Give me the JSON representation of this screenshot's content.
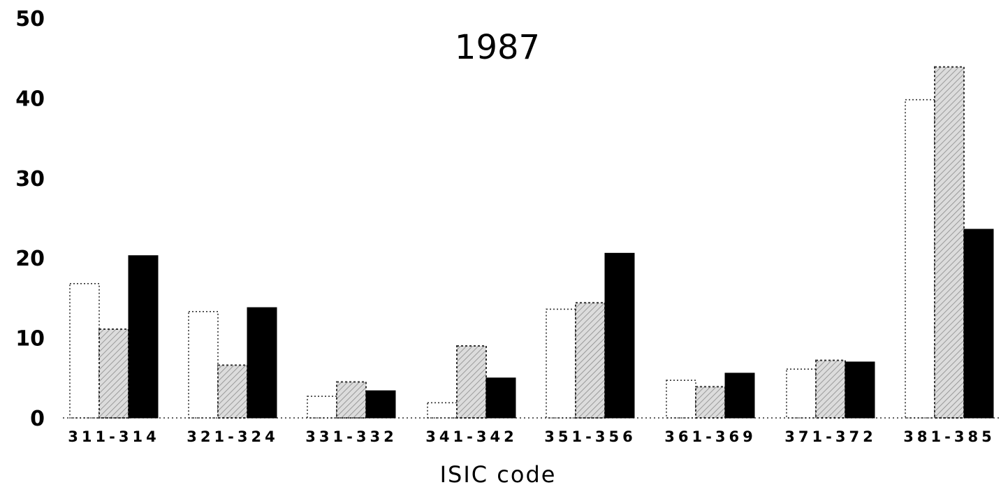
{
  "chart_data": {
    "type": "bar",
    "title": "1987",
    "xlabel": "ISIC code",
    "ylabel": "",
    "ylim": [
      0,
      50
    ],
    "yticks": [
      0,
      10,
      20,
      30,
      40,
      50
    ],
    "grid": false,
    "legend": "none",
    "categories": [
      "311-314",
      "321-324",
      "331-332",
      "341-342",
      "351-356",
      "361-369",
      "371-372",
      "381-385"
    ],
    "series": [
      {
        "values": [
          16.8,
          13.3,
          2.7,
          1.9,
          13.6,
          4.7,
          6.1,
          39.8
        ],
        "fill": "#ffffff",
        "pattern": "plain"
      },
      {
        "values": [
          11.1,
          6.6,
          4.5,
          9.0,
          14.4,
          3.9,
          7.2,
          43.9
        ],
        "fill": "#dcdcdc",
        "pattern": "hatched"
      },
      {
        "values": [
          20.3,
          13.8,
          3.4,
          5.0,
          20.6,
          5.6,
          7.0,
          23.6
        ],
        "fill": "#000000",
        "pattern": "solid"
      }
    ]
  }
}
